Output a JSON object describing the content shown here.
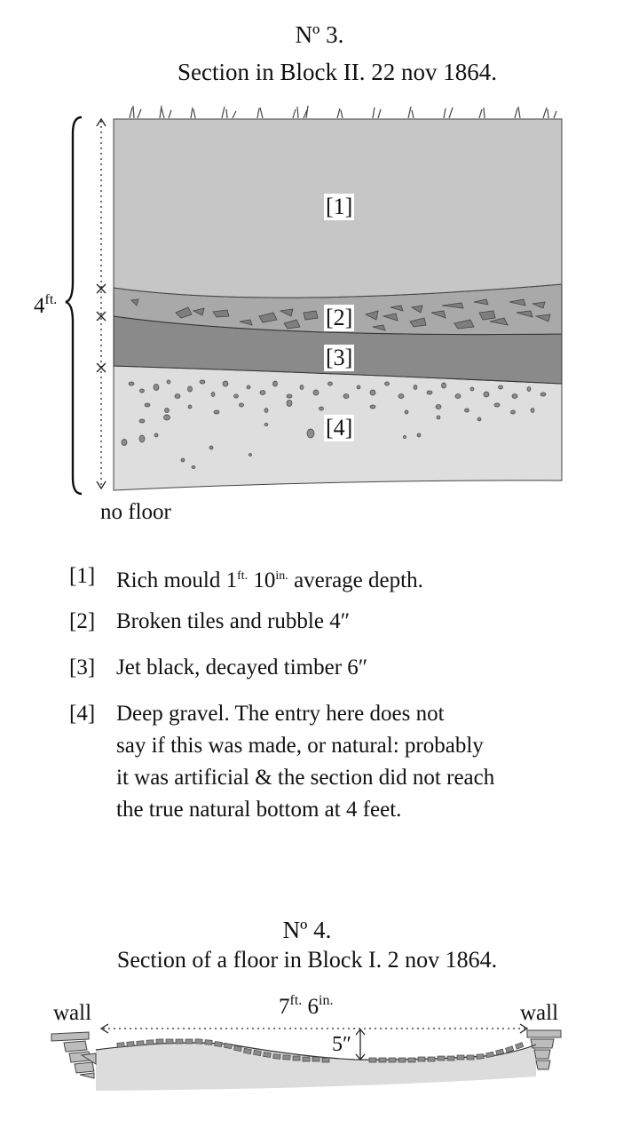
{
  "section3": {
    "number": "Nº 3.",
    "title": "Section in Block II. 22 nov 1864.",
    "height_label": "4",
    "height_label_unit": "ft.",
    "bottom_note": "no floor",
    "layer_labels": [
      "[1]",
      "[2]",
      "[3]",
      "[4]"
    ]
  },
  "legend": [
    {
      "key": "[1]",
      "text_before": "Rich mould 1",
      "sup1": "ft.",
      "mid": " 10",
      "sup2": "in.",
      "text_after": " average depth."
    },
    {
      "key": "[2]",
      "text": "Broken tiles and rubble 4″"
    },
    {
      "key": "[3]",
      "text": "Jet black, decayed timber 6″"
    },
    {
      "key": "[4]",
      "lines": [
        "Deep gravel. The entry here does not",
        "say if this was made, or natural: probably",
        "it was artificial & the section did not reach",
        "the true natural bottom at 4 feet."
      ]
    }
  ],
  "section4": {
    "number": "Nº 4.",
    "title": "Section of a floor in Block I. 2 nov 1864.",
    "left_label": "wall",
    "right_label": "wall",
    "span_ft": "7",
    "span_ft_unit": "ft.",
    "span_in": " 6",
    "span_in_unit": "in.",
    "depth_label": "5″"
  },
  "colors": {
    "layer1": "#c6c6c6",
    "layer2": "#a9a9a9",
    "layer3": "#8a8a8a",
    "layer4": "#dedede",
    "stone": "#8c8c8c",
    "ink": "#111111"
  }
}
